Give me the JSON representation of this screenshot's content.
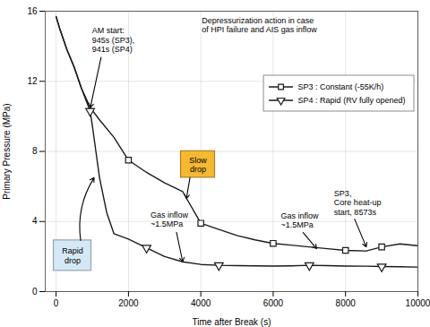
{
  "chart_data": {
    "type": "line",
    "xlabel": "Time after Break (s)",
    "ylabel": "Primary Pressure (MPa)",
    "xlim": [
      -300,
      10000
    ],
    "ylim": [
      0,
      16
    ],
    "xticks": [
      0,
      2000,
      4000,
      6000,
      8000,
      10000
    ],
    "yticks": [
      0,
      4,
      8,
      12,
      16
    ],
    "grid": true,
    "legend": "upper right",
    "series": [
      {
        "name": "SP3 : Constant (-55K/h)",
        "color": "#1a1a1a",
        "marker": "square",
        "x": [
          0,
          100,
          300,
          500,
          700,
          945,
          1200,
          1600,
          2000,
          2500,
          3000,
          3500,
          4000,
          4500,
          5000,
          5500,
          6000,
          6500,
          7000,
          7500,
          8000,
          8573,
          9000,
          9500,
          10000
        ],
        "values": [
          15.7,
          15.0,
          13.8,
          12.8,
          11.6,
          10.5,
          9.8,
          8.8,
          7.5,
          6.8,
          6.2,
          5.7,
          3.9,
          3.55,
          3.2,
          2.95,
          2.75,
          2.65,
          2.55,
          2.45,
          2.35,
          2.32,
          2.55,
          2.72,
          2.62
        ],
        "marker_x": [
          2000,
          4000,
          6000,
          8000,
          9000
        ],
        "marker_values": [
          7.5,
          3.9,
          2.75,
          2.35,
          2.55
        ]
      },
      {
        "name": "SP4 : Rapid (RV fully opened)",
        "color": "#1a1a1a",
        "marker": "triangle_down",
        "x": [
          0,
          100,
          300,
          500,
          700,
          941,
          1000,
          1100,
          1200,
          1400,
          1600,
          2000,
          2500,
          3000,
          3500,
          4000,
          4500,
          5000,
          5500,
          6000,
          6500,
          7000,
          7500,
          8000,
          8573,
          9000,
          9500,
          10000
        ],
        "values": [
          15.7,
          15.0,
          13.8,
          12.8,
          11.6,
          10.3,
          9.5,
          8.0,
          6.5,
          4.5,
          3.3,
          3.0,
          2.5,
          2.0,
          1.7,
          1.55,
          1.5,
          1.48,
          1.47,
          1.46,
          1.47,
          1.5,
          1.48,
          1.46,
          1.45,
          1.43,
          1.42,
          1.4
        ],
        "marker_x": [
          941,
          2500,
          4500,
          7000,
          9000
        ],
        "marker_values": [
          10.3,
          2.5,
          1.5,
          1.5,
          1.42
        ]
      }
    ],
    "annotations": [
      {
        "text": "Depressurization action in case\nof HPI failure and AIS gas inflow"
      },
      {
        "text": "AM start:\n945s (SP3),\n941s (SP4)",
        "x": 945,
        "y": 10.5
      },
      {
        "text": "Rapid\ndrop",
        "x": 1050,
        "y": 6.5,
        "color": "#d5e8f5"
      },
      {
        "text": "Slow\ndrop",
        "x": 3600,
        "y": 5.3,
        "color": "#f5b830"
      },
      {
        "text": "Gas inflow\n~1.5MPa",
        "x": 3500,
        "y": 1.7
      },
      {
        "text": "Gas inflow\n~1.5MPa",
        "x": 7200,
        "y": 2.45
      },
      {
        "text": "SP3,\nCore heat-up\nstart, 8573s",
        "x": 8573,
        "y": 2.55
      }
    ]
  }
}
